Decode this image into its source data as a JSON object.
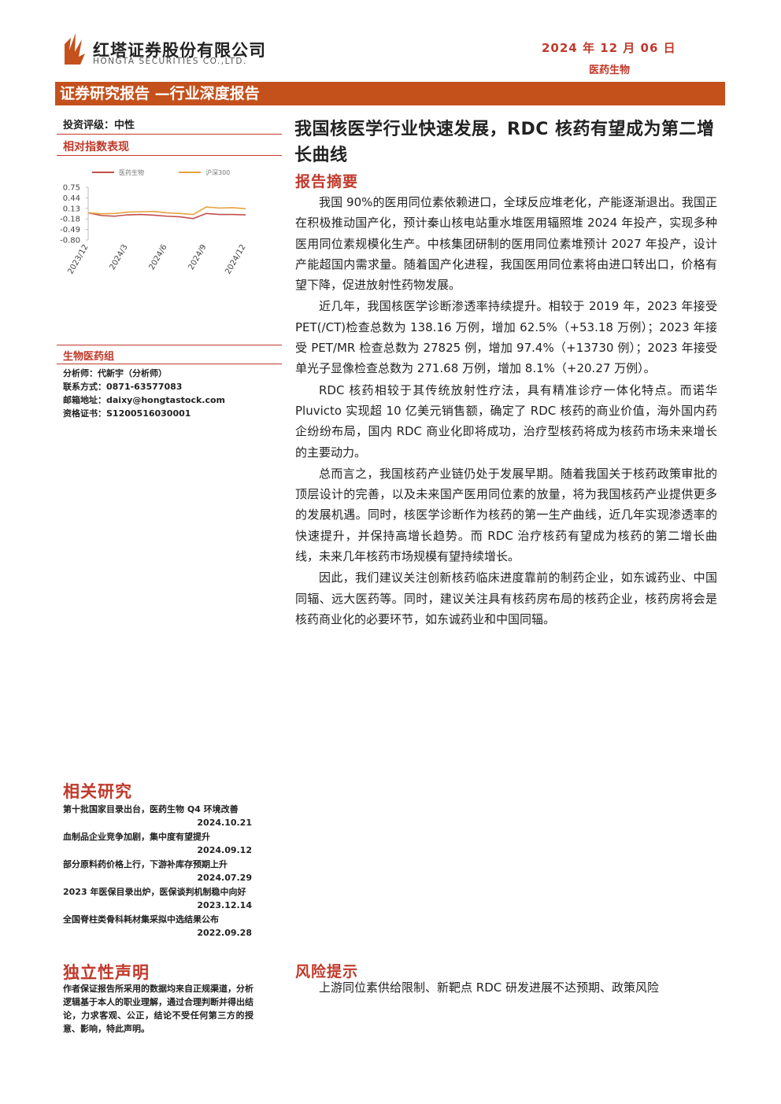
{
  "header": {
    "company": "红塔证券股份有限公司",
    "company_en": "HONGTA SECURITIES CO.,LTD.",
    "date": "2024 年 12 月 06 日",
    "industry": "医药生物"
  },
  "banner": "证券研究报告 —行业深度报告",
  "sidebar": {
    "rating": "投资评级：中性",
    "chart_heading": "相对指数表现",
    "group": "生物医药组",
    "contacts": [
      "分析师：代新宇（分析师）",
      "联系方式：0871-63577083",
      "邮箱地址：daixy@hongtastock.com",
      "资格证书：S1200516030001"
    ],
    "related_heading": "相关研究",
    "related": [
      {
        "title": "第十批国家目录出台，医药生物 Q4 环境改善",
        "date": "2024.10.21"
      },
      {
        "title": "血制品企业竞争加剧，集中度有望提升",
        "date": "2024.09.12"
      },
      {
        "title": "部分原料药价格上行，下游补库存预期上升",
        "date": "2024.07.29"
      },
      {
        "title": "2023 年医保目录出炉，医保谈判机制稳中向好",
        "date": "2023.12.14"
      },
      {
        "title": "全国脊柱类骨科耗材集采拟中选结果公布",
        "date": "2022.09.28"
      }
    ],
    "disclaimer_heading": "独立性声明",
    "disclaimer": "作者保证报告所采用的数据均来自正规渠道，分析逻辑基于本人的职业理解，通过合理判断并得出结论，力求客观、公正，结论不受任何第三方的授意、影响，特此声明。"
  },
  "chart_data": {
    "type": "line",
    "categories": [
      "2023/12",
      null,
      null,
      "2024/3",
      null,
      null,
      "2024/6",
      null,
      null,
      "2024/9",
      null,
      null,
      "2024/12"
    ],
    "series": [
      {
        "name": "医药生物",
        "color": "#c0504d",
        "values": [
          0,
          -0.08,
          -0.1,
          -0.06,
          -0.05,
          -0.07,
          -0.1,
          -0.12,
          -0.17,
          -0.02,
          -0.05,
          -0.05,
          -0.06
        ]
      },
      {
        "name": "沪深300",
        "color": "#e6a23c",
        "values": [
          0,
          -0.03,
          -0.02,
          0.02,
          0.03,
          0.04,
          0,
          -0.02,
          -0.05,
          0.17,
          0.14,
          0.15,
          0.12
        ]
      }
    ],
    "ylim": [
      -0.8,
      0.75
    ],
    "yticks": [
      0.75,
      0.44,
      0.13,
      -0.18,
      -0.49,
      {
        "value": -0.8,
        "label": "-0.80"
      }
    ]
  },
  "main": {
    "title": "我国核医学行业快速发展，RDC 核药有望成为第二增长曲线",
    "summary_heading": "报告摘要",
    "paragraphs": [
      "我国 90%的医用同位素依赖进口，全球反应堆老化，产能逐渐退出。我国正在积极推动国产化，预计秦山核电站重水堆医用辐照堆 2024 年投产，实现多种医用同位素规模化生产。中核集团研制的医用同位素堆预计 2027 年投产，设计产能超国内需求量。随着国产化进程，我国医用同位素将由进口转出口，价格有望下降，促进放射性药物发展。",
      "近几年，我国核医学诊断渗透率持续提升。相较于 2019 年，2023 年接受 PET(/CT)检查总数为 138.16 万例，增加 62.5%（+53.18 万例）；2023 年接受 PET/MR 检查总数为 27825 例，增加 97.4%（+13730 例）；2023 年接受单光子显像检查总数为 271.68 万例，增加 8.1%（+20.27 万例）。",
      "RDC 核药相较于其传统放射性疗法，具有精准诊疗一体化特点。而诺华 Pluvicto 实现超 10 亿美元销售额，确定了 RDC 核药的商业价值，海外国内药企纷纷布局，国内 RDC 商业化即将成功，治疗型核药将成为核药市场未来增长的主要动力。",
      "总而言之，我国核药产业链仍处于发展早期。随着我国关于核药政策审批的顶层设计的完善，以及未来国产医用同位素的放量，将为我国核药产业提供更多的发展机遇。同时，核医学诊断作为核药的第一生产曲线，近几年实现渗透率的快速提升，并保持高增长趋势。而 RDC 治疗核药有望成为核药的第二增长曲线，未来几年核药市场规模有望持续增长。",
      "因此，我们建议关注创新核药临床进度靠前的制药企业，如东诚药业、中国同辐、远大医药等。同时，建议关注具有核药房布局的核药企业，核药房将会是核药商业化的必要环节，如东诚药业和中国同辐。"
    ],
    "risk_heading": "风险提示",
    "risk": "上游同位素供给限制、新靶点 RDC 研发进展不达预期、政策风险"
  }
}
